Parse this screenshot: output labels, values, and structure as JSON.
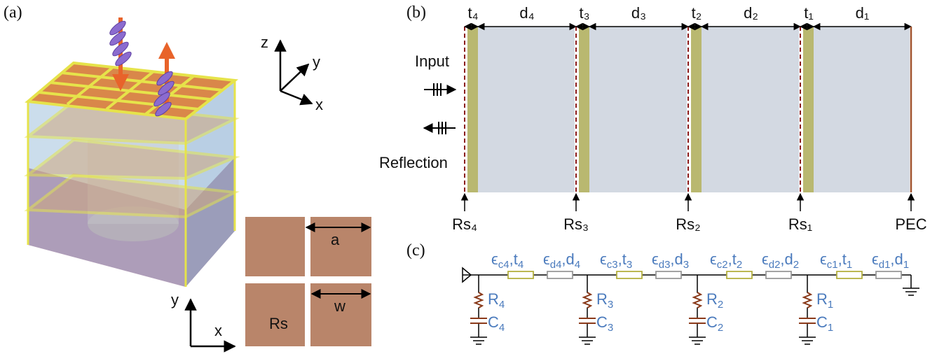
{
  "panel_a": {
    "label": "(a)",
    "axes_3d": [
      "z",
      "y",
      "x"
    ],
    "unit_cell": {
      "period": "a",
      "width": "w",
      "resistance": "Rs"
    },
    "axes_2d": [
      "y",
      "x"
    ]
  },
  "panel_b": {
    "label": "(b)",
    "thickness_labels": [
      "t₄",
      "d₄",
      "t₃",
      "d₃",
      "t₂",
      "d₂",
      "t₁",
      "d₁"
    ],
    "input": "Input",
    "reflection": "Reflection",
    "sheet_labels": [
      "Rs₄",
      "Rs₃",
      "Rs₂",
      "Rs₁",
      "PEC"
    ]
  },
  "panel_c": {
    "label": "(c)",
    "series_elements": [
      {
        "coating": [
          "ϵ",
          "c4",
          ",t",
          "4"
        ],
        "dielectric": [
          "ϵ",
          "d4",
          ",d",
          "4"
        ]
      },
      {
        "coating": [
          "ϵ",
          "c3",
          ",t",
          "3"
        ],
        "dielectric": [
          "ϵ",
          "d3",
          ",d",
          "3"
        ]
      },
      {
        "coating": [
          "ϵ",
          "c2",
          ",t",
          "2"
        ],
        "dielectric": [
          "ϵ",
          "d2",
          ",d",
          "2"
        ]
      },
      {
        "coating": [
          "ϵ",
          "c1",
          ",t",
          "1"
        ],
        "dielectric": [
          "ϵ",
          "d1",
          ",d",
          "1"
        ]
      }
    ],
    "shunts": [
      {
        "resistor": [
          "R",
          "4"
        ],
        "capacitor": [
          "C",
          "4"
        ]
      },
      {
        "resistor": [
          "R",
          "3"
        ],
        "capacitor": [
          "C",
          "3"
        ]
      },
      {
        "resistor": [
          "R",
          "2"
        ],
        "capacitor": [
          "C",
          "2"
        ]
      },
      {
        "resistor": [
          "R",
          "1"
        ],
        "capacitor": [
          "C",
          "1"
        ]
      }
    ]
  }
}
